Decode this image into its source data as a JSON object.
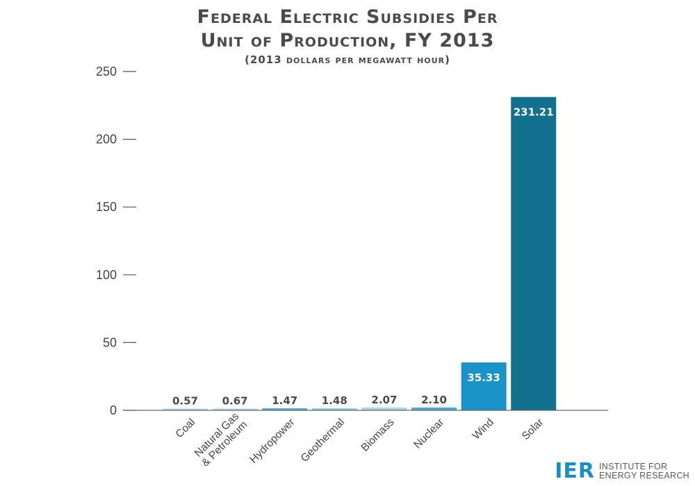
{
  "chart_data": {
    "type": "bar",
    "title_line1": "Federal Electric Subsidies Per",
    "title_line2": "Unit of Production, FY 2013",
    "subtitle": "(2013 dollars per megawatt hour)",
    "xlabel": "",
    "ylabel": "",
    "ylim": [
      0,
      250
    ],
    "yticks": [
      0,
      50,
      100,
      150,
      200,
      250
    ],
    "grid": false,
    "categories": [
      "Coal",
      "Natural Gas\n& Petroleum",
      "Hydropower",
      "Geothermal",
      "Biomass",
      "Nuclear",
      "Wind",
      "Solar"
    ],
    "values": [
      0.57,
      0.67,
      1.47,
      1.48,
      2.07,
      2.1,
      35.33,
      231.21
    ],
    "value_labels": [
      "0.57",
      "0.67",
      "1.47",
      "1.48",
      "2.07",
      "2.10",
      "35.33",
      "231.21"
    ],
    "colors": [
      "#a8d8e8",
      "#a8d8e8",
      "#4ba9d4",
      "#8fcbe2",
      "#a8d8e8",
      "#4ba9d4",
      "#1a93c8",
      "#12708f"
    ]
  },
  "logo": {
    "mark": "IER",
    "line1": "INSTITUTE FOR",
    "line2": "ENERGY RESEARCH"
  }
}
